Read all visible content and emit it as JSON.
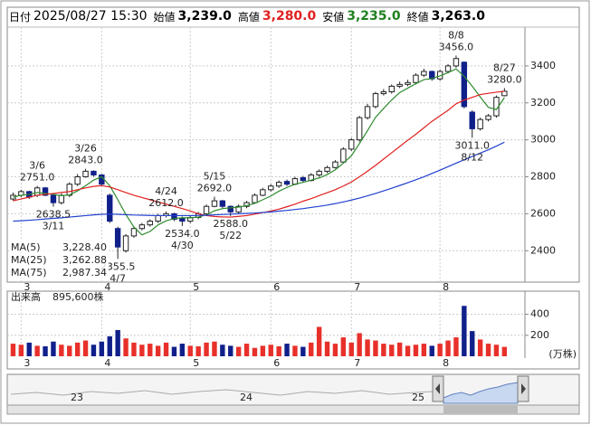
{
  "header": {
    "date_label": "日付",
    "date": "2025/08/27 15:30",
    "open_label": "始値",
    "open": "3,239.0",
    "high_label": "高値",
    "high": "3,280.0",
    "low_label": "安値",
    "low": "3,235.0",
    "close_label": "終値",
    "close": "3,263.0"
  },
  "chart_data": [
    {
      "type": "candlestick",
      "up_color": "#ffffff",
      "down_color": "#10208a",
      "categories": [
        null,
        "3",
        null,
        null,
        null,
        null,
        null,
        null,
        null,
        null,
        null,
        "4",
        null,
        null,
        null,
        null,
        null,
        null,
        null,
        null,
        null,
        null,
        "5",
        null,
        null,
        null,
        null,
        null,
        null,
        null,
        null,
        null,
        "6",
        null,
        null,
        null,
        null,
        null,
        null,
        null,
        null,
        null,
        "7",
        null,
        null,
        null,
        null,
        null,
        null,
        null,
        null,
        null,
        null,
        "8",
        null,
        null,
        null,
        null,
        null,
        null,
        null,
        null
      ],
      "open": [
        2680,
        2700,
        2720,
        2700,
        2740,
        2700,
        2660,
        2700,
        2760,
        2800,
        2830,
        2810,
        2700,
        2520,
        2400,
        2480,
        2520,
        2540,
        2560,
        2590,
        2600,
        2575,
        2560,
        2580,
        2600,
        2640,
        2670,
        2640,
        2610,
        2640,
        2660,
        2700,
        2730,
        2750,
        2775,
        2760,
        2795,
        2780,
        2810,
        2830,
        2850,
        2880,
        2950,
        3000,
        3120,
        3180,
        3250,
        3260,
        3290,
        3300,
        3310,
        3350,
        3370,
        3330,
        3370,
        3400,
        3420,
        3150,
        3060,
        3110,
        3130,
        3239
      ],
      "high": [
        2715,
        2730,
        2725,
        2751,
        2745,
        2705,
        2710,
        2770,
        2815,
        2843,
        2835,
        2815,
        2710,
        2530,
        2490,
        2530,
        2550,
        2570,
        2600,
        2612,
        2605,
        2585,
        2590,
        2610,
        2650,
        2692,
        2675,
        2645,
        2650,
        2670,
        2710,
        2740,
        2760,
        2780,
        2785,
        2800,
        2805,
        2820,
        2840,
        2860,
        2890,
        2960,
        3010,
        3130,
        3195,
        3260,
        3275,
        3300,
        3315,
        3325,
        3360,
        3385,
        3375,
        3380,
        3410,
        3456,
        3425,
        3160,
        3120,
        3140,
        3240,
        3280
      ],
      "low": [
        2670,
        2690,
        2680,
        2690,
        2695,
        2638.5,
        2650,
        2690,
        2750,
        2795,
        2800,
        2750,
        2550,
        2355.5,
        2390,
        2470,
        2510,
        2530,
        2550,
        2580,
        2560,
        2534,
        2550,
        2570,
        2595,
        2635,
        2630,
        2588,
        2600,
        2630,
        2655,
        2695,
        2720,
        2740,
        2750,
        2755,
        2770,
        2775,
        2800,
        2820,
        2845,
        2875,
        2940,
        2990,
        3110,
        3170,
        3240,
        3250,
        3280,
        3290,
        3300,
        3340,
        3320,
        3320,
        3360,
        3390,
        3170,
        3011,
        3050,
        3100,
        3120,
        3235
      ],
      "close": [
        2700,
        2720,
        2690,
        2740,
        2700,
        2660,
        2700,
        2760,
        2800,
        2830,
        2810,
        2760,
        2560,
        2420,
        2480,
        2520,
        2540,
        2560,
        2590,
        2600,
        2570,
        2560,
        2580,
        2600,
        2640,
        2670,
        2640,
        2610,
        2640,
        2660,
        2700,
        2730,
        2750,
        2770,
        2760,
        2790,
        2780,
        2810,
        2830,
        2850,
        2880,
        2950,
        3000,
        3120,
        3180,
        3250,
        3260,
        3290,
        3300,
        3310,
        3350,
        3370,
        3330,
        3370,
        3400,
        3440,
        3180,
        3060,
        3110,
        3130,
        3230,
        3263
      ],
      "series": [
        {
          "name": "MA(5)",
          "legend_value": "3,228.40",
          "color": "#2e8b2e",
          "values": [
            2690,
            2700,
            2705,
            2715,
            2710,
            2705,
            2698,
            2702,
            2724,
            2752,
            2782,
            2800,
            2752,
            2676,
            2596,
            2528,
            2486,
            2504,
            2540,
            2562,
            2574,
            2578,
            2578,
            2582,
            2594,
            2616,
            2628,
            2632,
            2636,
            2644,
            2656,
            2676,
            2696,
            2722,
            2742,
            2760,
            2770,
            2782,
            2794,
            2812,
            2838,
            2874,
            2914,
            2980,
            3050,
            3122,
            3170,
            3216,
            3256,
            3280,
            3304,
            3326,
            3332,
            3346,
            3364,
            3384,
            3344,
            3290,
            3232,
            3176,
            3164,
            3228.4
          ]
        },
        {
          "name": "MA(25)",
          "legend_value": "3,262.88",
          "color": "#e02020",
          "values": [
            2670,
            2680,
            2690,
            2700,
            2705,
            2710,
            2715,
            2720,
            2730,
            2740,
            2748,
            2752,
            2745,
            2730,
            2715,
            2700,
            2688,
            2676,
            2664,
            2652,
            2640,
            2628,
            2615,
            2600,
            2590,
            2585,
            2583,
            2582,
            2586,
            2590,
            2598,
            2606,
            2615,
            2625,
            2638,
            2652,
            2668,
            2682,
            2698,
            2714,
            2730,
            2750,
            2772,
            2800,
            2830,
            2862,
            2896,
            2930,
            2964,
            2998,
            3030,
            3065,
            3100,
            3130,
            3160,
            3195,
            3215,
            3230,
            3245,
            3252,
            3258,
            3262.88
          ]
        },
        {
          "name": "MA(75)",
          "legend_value": "2,987.34",
          "color": "#2040d0",
          "values": [
            2560,
            2562,
            2565,
            2568,
            2572,
            2575,
            2578,
            2582,
            2586,
            2590,
            2594,
            2597,
            2598,
            2597,
            2595,
            2593,
            2592,
            2591,
            2590,
            2590,
            2590,
            2590,
            2590,
            2591,
            2592,
            2594,
            2596,
            2598,
            2600,
            2602,
            2604,
            2607,
            2610,
            2614,
            2618,
            2623,
            2628,
            2634,
            2640,
            2647,
            2655,
            2664,
            2674,
            2685,
            2697,
            2710,
            2724,
            2738,
            2753,
            2768,
            2784,
            2800,
            2818,
            2836,
            2855,
            2874,
            2892,
            2910,
            2928,
            2946,
            2966,
            2987.34
          ]
        }
      ],
      "annotations": [
        {
          "date": "3/6",
          "value": 2751,
          "label": "2751.0"
        },
        {
          "date": "3/11",
          "value": 2638.5,
          "label": "2638.5"
        },
        {
          "date": "3/26",
          "value": 2843,
          "label": "2843.0"
        },
        {
          "date": "4/7",
          "value": 2355.5,
          "label": "2355.5"
        },
        {
          "date": "4/24",
          "value": 2612,
          "label": "2612.0"
        },
        {
          "date": "4/30",
          "value": 2534,
          "label": "2534.0"
        },
        {
          "date": "5/15",
          "value": 2692,
          "label": "2692.0"
        },
        {
          "date": "5/22",
          "value": 2588,
          "label": "2588.0"
        },
        {
          "date": "8/8",
          "value": 3456,
          "label": "3456.0"
        },
        {
          "date": "8/12",
          "value": 3011,
          "label": "3011.0"
        },
        {
          "date": "8/27",
          "value": 3280,
          "label": "3280.0"
        }
      ],
      "ylim": [
        2230,
        3610
      ],
      "yticks": [
        2400,
        2600,
        2800,
        3000,
        3200,
        3400
      ],
      "grid": true
    },
    {
      "type": "bar",
      "title": "出来高",
      "subtitle": "895,600株",
      "unit": "(万株)",
      "up_color": "#e8302a",
      "down_color": "#10208a",
      "categories": [
        null,
        "3",
        null,
        null,
        null,
        null,
        null,
        null,
        null,
        null,
        null,
        "4",
        null,
        null,
        null,
        null,
        null,
        null,
        null,
        null,
        null,
        null,
        "5",
        null,
        null,
        null,
        null,
        null,
        null,
        null,
        null,
        null,
        "6",
        null,
        null,
        null,
        null,
        null,
        null,
        null,
        null,
        null,
        "7",
        null,
        null,
        null,
        null,
        null,
        null,
        null,
        null,
        null,
        null,
        "8",
        null,
        null,
        null,
        null,
        null,
        null,
        null,
        null
      ],
      "values": [
        120,
        110,
        130,
        100,
        95,
        140,
        110,
        100,
        130,
        150,
        110,
        140,
        190,
        250,
        170,
        130,
        110,
        120,
        100,
        130,
        90,
        120,
        100,
        95,
        130,
        140,
        110,
        100,
        90,
        120,
        80,
        100,
        110,
        95,
        120,
        100,
        90,
        130,
        280,
        140,
        120,
        180,
        130,
        220,
        160,
        150,
        120,
        110,
        130,
        100,
        110,
        120,
        100,
        120,
        150,
        180,
        480,
        240,
        160,
        120,
        110,
        89.56
      ],
      "ylim": [
        0,
        620
      ],
      "yticks": [
        200,
        400
      ],
      "grid": true
    }
  ],
  "navigator": {
    "labels": [
      "23",
      "24",
      "25"
    ]
  }
}
